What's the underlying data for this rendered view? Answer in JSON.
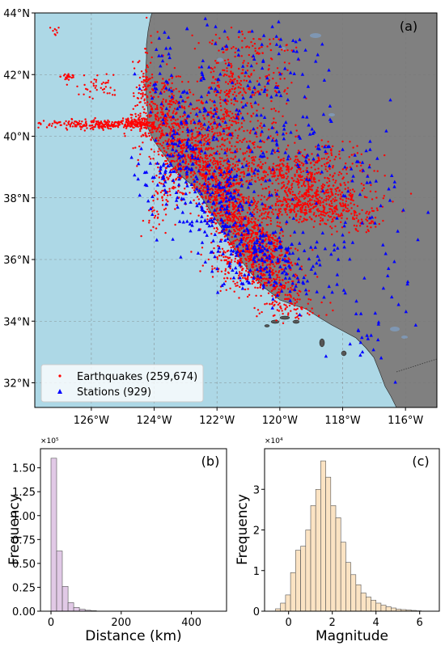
{
  "chart_data": [
    {
      "type": "scatter",
      "panel_label": "(a)",
      "x_ticks": [
        "126°W",
        "124°W",
        "122°W",
        "120°W",
        "118°W",
        "116°W"
      ],
      "y_ticks": [
        "32°N",
        "34°N",
        "36°N",
        "38°N",
        "40°N",
        "42°N",
        "44°N"
      ],
      "xlim": [
        -127.8,
        -115.0
      ],
      "ylim": [
        31.2,
        44.0
      ],
      "grid": true,
      "legend_position": "bottom-left",
      "colors": {
        "ocean": "#add8e6",
        "land": "#808080",
        "earthquakes": "#ff0000",
        "stations": "#0000ff",
        "lakes": "#7f97b3"
      },
      "series": [
        {
          "name": "Earthquakes (259,674)",
          "marker": "dot",
          "color": "#ff0000"
        },
        {
          "name": "Stations (929)",
          "marker": "triangle",
          "color": "#0000ff"
        }
      ]
    },
    {
      "type": "bar",
      "panel_label": "(b)",
      "xlabel": "Distance (km)",
      "ylabel": "Frequency",
      "multiplier": "×10⁵",
      "xlim": [
        -30,
        500
      ],
      "ylim": [
        0,
        1.7
      ],
      "x_ticks": [
        "0",
        "200",
        "400"
      ],
      "x_tick_values": [
        0,
        200,
        400
      ],
      "y_ticks": [
        "0.00",
        "0.25",
        "0.50",
        "0.75",
        "1.00",
        "1.25",
        "1.50"
      ],
      "y_tick_values": [
        0,
        0.25,
        0.5,
        0.75,
        1.0,
        1.25,
        1.5
      ],
      "bin_edges": [
        0,
        16.2,
        32.4,
        48.6,
        64.8,
        81.0,
        97.2,
        113.4,
        129.6
      ],
      "values": [
        1.6,
        0.63,
        0.26,
        0.09,
        0.04,
        0.02,
        0.01,
        0.005
      ],
      "color": "#e1c9e6"
    },
    {
      "type": "bar",
      "panel_label": "(c)",
      "xlabel": "Magnitude",
      "ylabel": "Frequency",
      "multiplier": "×10⁴",
      "xlim": [
        -1.1,
        6.9
      ],
      "ylim": [
        0,
        4.0
      ],
      "x_ticks": [
        "0",
        "2",
        "4",
        "6"
      ],
      "x_tick_values": [
        0,
        2,
        4,
        6
      ],
      "y_ticks": [
        "0",
        "1",
        "2",
        "3"
      ],
      "y_tick_values": [
        0,
        1,
        2,
        3
      ],
      "bin_edges": [
        -0.6,
        -0.37,
        -0.14,
        0.09,
        0.32,
        0.55,
        0.78,
        1.01,
        1.24,
        1.47,
        1.7,
        1.93,
        2.16,
        2.39,
        2.62,
        2.85,
        3.08,
        3.31,
        3.54,
        3.77,
        4.0,
        4.23,
        4.46,
        4.69,
        4.92,
        5.15,
        5.38,
        5.61,
        5.84,
        6.07
      ],
      "values": [
        0.06,
        0.2,
        0.4,
        0.95,
        1.5,
        1.6,
        2.0,
        2.6,
        3.0,
        3.7,
        3.3,
        2.6,
        2.3,
        1.7,
        1.2,
        0.9,
        0.65,
        0.45,
        0.35,
        0.27,
        0.2,
        0.15,
        0.11,
        0.08,
        0.05,
        0.04,
        0.03,
        0.02,
        0.01
      ],
      "color": "#fbe3c3"
    }
  ]
}
